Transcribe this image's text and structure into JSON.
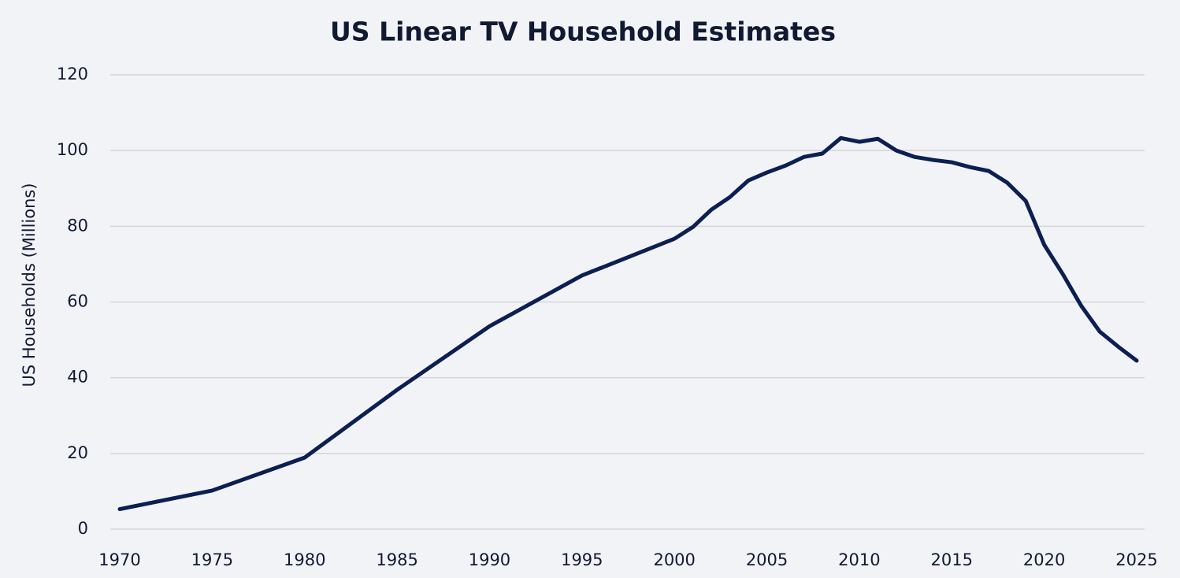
{
  "chart_data": {
    "type": "line",
    "title": "US Linear TV Household Estimates",
    "y_label": "US Households (Millions)",
    "x": [
      1970,
      1975,
      1980,
      1985,
      1990,
      1995,
      2000,
      2001,
      2002,
      2003,
      2004,
      2005,
      2006,
      2007,
      2008,
      2009,
      2010,
      2011,
      2012,
      2013,
      2014,
      2015,
      2016,
      2017,
      2018,
      2019,
      2020,
      2021,
      2022,
      2023,
      2024,
      2025
    ],
    "series": [
      {
        "color": "#0b1f52",
        "values": [
          5.3,
          10.2,
          18.9,
          36.8,
          53.6,
          67,
          76.7,
          79.8,
          84.4,
          87.7,
          92.1,
          94.2,
          96,
          98.3,
          99.2,
          103.3,
          102.3,
          103.1,
          100,
          98.3,
          97.5,
          96.9,
          95.6,
          94.6,
          91.5,
          86.7,
          75.1,
          67.4,
          59,
          52.2,
          48.2,
          44.5
        ]
      }
    ],
    "xlim": [
      1970,
      2025
    ],
    "xticks": [
      1970,
      1975,
      1980,
      1985,
      1990,
      1995,
      2000,
      2005,
      2010,
      2015,
      2020,
      2025
    ],
    "ylim": [
      0,
      120
    ],
    "yticks": [
      0,
      20,
      40,
      60,
      80,
      100,
      120
    ],
    "grid": true
  }
}
